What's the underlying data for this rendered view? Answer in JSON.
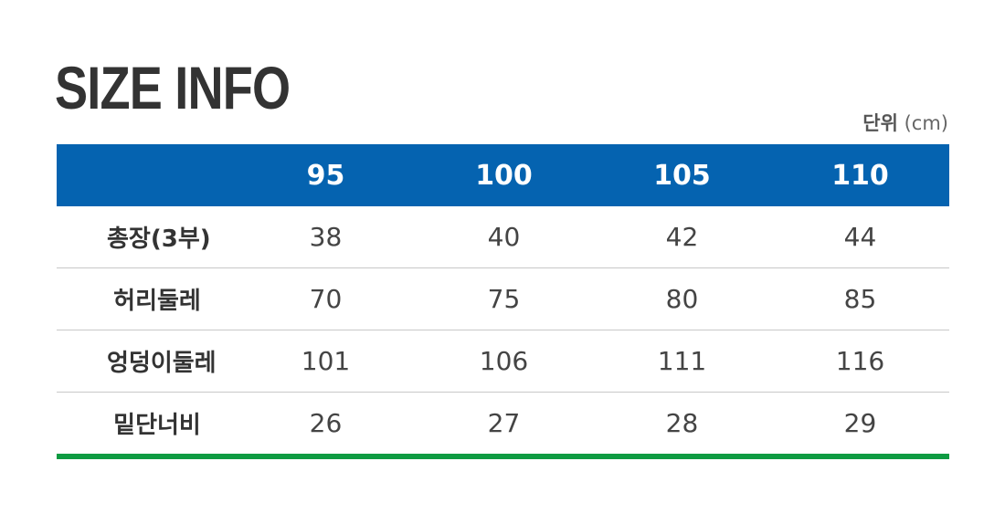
{
  "title": "SIZE INFO",
  "unit": {
    "label": "단위",
    "value": "(cm)"
  },
  "colors": {
    "header_bg": "#0563b0",
    "bottom_rule": "#0e9b42",
    "text": "#333333"
  },
  "table": {
    "columns": [
      "95",
      "100",
      "105",
      "110"
    ],
    "rows": [
      {
        "label": "총장(3부)",
        "values": [
          "38",
          "40",
          "42",
          "44"
        ]
      },
      {
        "label": "허리둘레",
        "values": [
          "70",
          "75",
          "80",
          "85"
        ]
      },
      {
        "label": "엉덩이둘레",
        "values": [
          "101",
          "106",
          "111",
          "116"
        ]
      },
      {
        "label": "밑단너비",
        "values": [
          "26",
          "27",
          "28",
          "29"
        ]
      }
    ]
  }
}
